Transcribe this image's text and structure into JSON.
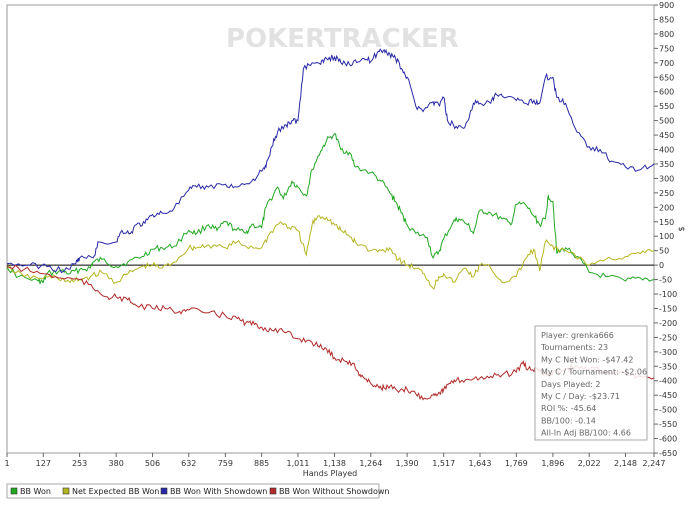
{
  "chart_data": {
    "type": "line",
    "watermark": "POKERTRACKER",
    "xlabel": "Hands Played",
    "ylabel": "$",
    "xlim": [
      1,
      2247
    ],
    "ylim": [
      -650,
      900
    ],
    "x_ticks": [
      1,
      127,
      253,
      380,
      506,
      632,
      759,
      885,
      1011,
      1138,
      1264,
      1390,
      1517,
      1643,
      1769,
      1896,
      2022,
      2148,
      2247
    ],
    "x_tick_labels": [
      "1",
      "127",
      "253",
      "380",
      "506",
      "632",
      "759",
      "885",
      "1,011",
      "1,138",
      "1,264",
      "1,390",
      "1,517",
      "1,643",
      "1,769",
      "1,896",
      "2,022",
      "2,148",
      "2,247"
    ],
    "y_ticks": [
      900,
      850,
      800,
      750,
      700,
      650,
      600,
      550,
      500,
      450,
      400,
      350,
      300,
      250,
      200,
      150,
      100,
      50,
      0,
      -50,
      -100,
      -150,
      -200,
      -250,
      -300,
      -350,
      -400,
      -450,
      -500,
      -550,
      -600,
      -650
    ],
    "series": [
      {
        "name": "BB Won",
        "color": "#21a821",
        "points": [
          [
            1,
            -5
          ],
          [
            40,
            -40
          ],
          [
            110,
            -55
          ],
          [
            127,
            -60
          ],
          [
            140,
            -30
          ],
          [
            190,
            -20
          ],
          [
            220,
            -30
          ],
          [
            253,
            -15
          ],
          [
            290,
            -10
          ],
          [
            300,
            10
          ],
          [
            330,
            20
          ],
          [
            380,
            -5
          ],
          [
            420,
            10
          ],
          [
            470,
            30
          ],
          [
            506,
            55
          ],
          [
            540,
            60
          ],
          [
            580,
            65
          ],
          [
            632,
            120
          ],
          [
            660,
            110
          ],
          [
            700,
            140
          ],
          [
            730,
            120
          ],
          [
            759,
            150
          ],
          [
            790,
            125
          ],
          [
            830,
            110
          ],
          [
            850,
            140
          ],
          [
            885,
            130
          ],
          [
            900,
            200
          ],
          [
            940,
            270
          ],
          [
            960,
            230
          ],
          [
            990,
            290
          ],
          [
            1011,
            270
          ],
          [
            1040,
            240
          ],
          [
            1060,
            330
          ],
          [
            1090,
            395
          ],
          [
            1110,
            430
          ],
          [
            1138,
            455
          ],
          [
            1160,
            400
          ],
          [
            1190,
            390
          ],
          [
            1210,
            340
          ],
          [
            1264,
            320
          ],
          [
            1300,
            290
          ],
          [
            1330,
            250
          ],
          [
            1350,
            220
          ],
          [
            1370,
            180
          ],
          [
            1390,
            140
          ],
          [
            1420,
            110
          ],
          [
            1460,
            95
          ],
          [
            1480,
            25
          ],
          [
            1500,
            45
          ],
          [
            1517,
            90
          ],
          [
            1550,
            150
          ],
          [
            1570,
            160
          ],
          [
            1600,
            140
          ],
          [
            1620,
            110
          ],
          [
            1643,
            190
          ],
          [
            1680,
            180
          ],
          [
            1720,
            160
          ],
          [
            1750,
            140
          ],
          [
            1769,
            210
          ],
          [
            1800,
            210
          ],
          [
            1830,
            170
          ],
          [
            1850,
            140
          ],
          [
            1870,
            160
          ],
          [
            1880,
            240
          ],
          [
            1896,
            220
          ],
          [
            1910,
            40
          ],
          [
            1940,
            60
          ],
          [
            1980,
            30
          ],
          [
            2022,
            -25
          ],
          [
            2080,
            -40
          ],
          [
            2148,
            -55
          ],
          [
            2200,
            -45
          ],
          [
            2247,
            -50
          ]
        ]
      },
      {
        "name": "Net Expected BB Won",
        "color": "#b5b522",
        "points": [
          [
            1,
            -5
          ],
          [
            60,
            -40
          ],
          [
            127,
            -45
          ],
          [
            170,
            -40
          ],
          [
            220,
            -60
          ],
          [
            253,
            -50
          ],
          [
            290,
            -40
          ],
          [
            330,
            -25
          ],
          [
            380,
            -60
          ],
          [
            420,
            -30
          ],
          [
            470,
            -5
          ],
          [
            506,
            0
          ],
          [
            540,
            -10
          ],
          [
            580,
            10
          ],
          [
            632,
            60
          ],
          [
            660,
            60
          ],
          [
            700,
            70
          ],
          [
            759,
            60
          ],
          [
            800,
            80
          ],
          [
            830,
            65
          ],
          [
            885,
            60
          ],
          [
            910,
            105
          ],
          [
            950,
            150
          ],
          [
            980,
            130
          ],
          [
            1011,
            120
          ],
          [
            1040,
            35
          ],
          [
            1060,
            140
          ],
          [
            1080,
            170
          ],
          [
            1110,
            165
          ],
          [
            1138,
            140
          ],
          [
            1160,
            120
          ],
          [
            1190,
            100
          ],
          [
            1210,
            80
          ],
          [
            1264,
            50
          ],
          [
            1300,
            50
          ],
          [
            1330,
            60
          ],
          [
            1360,
            20
          ],
          [
            1390,
            0
          ],
          [
            1420,
            -10
          ],
          [
            1450,
            -30
          ],
          [
            1480,
            -80
          ],
          [
            1500,
            -40
          ],
          [
            1517,
            -30
          ],
          [
            1550,
            -60
          ],
          [
            1590,
            -10
          ],
          [
            1620,
            -40
          ],
          [
            1643,
            0
          ],
          [
            1680,
            -10
          ],
          [
            1720,
            -60
          ],
          [
            1769,
            -40
          ],
          [
            1800,
            20
          ],
          [
            1830,
            55
          ],
          [
            1850,
            -20
          ],
          [
            1870,
            80
          ],
          [
            1896,
            65
          ],
          [
            1920,
            50
          ],
          [
            1960,
            45
          ],
          [
            2022,
            0
          ],
          [
            2080,
            20
          ],
          [
            2148,
            30
          ],
          [
            2200,
            40
          ],
          [
            2247,
            50
          ]
        ]
      },
      {
        "name": "BB Won With Showdown",
        "color": "#2828a8",
        "points": [
          [
            1,
            5
          ],
          [
            80,
            0
          ],
          [
            140,
            -5
          ],
          [
            200,
            -20
          ],
          [
            240,
            5
          ],
          [
            253,
            25
          ],
          [
            300,
            25
          ],
          [
            320,
            80
          ],
          [
            380,
            80
          ],
          [
            400,
            120
          ],
          [
            430,
            110
          ],
          [
            450,
            140
          ],
          [
            480,
            145
          ],
          [
            506,
            175
          ],
          [
            540,
            180
          ],
          [
            580,
            195
          ],
          [
            632,
            260
          ],
          [
            660,
            270
          ],
          [
            700,
            270
          ],
          [
            759,
            280
          ],
          [
            800,
            270
          ],
          [
            850,
            290
          ],
          [
            885,
            325
          ],
          [
            900,
            340
          ],
          [
            920,
            410
          ],
          [
            940,
            460
          ],
          [
            970,
            485
          ],
          [
            990,
            500
          ],
          [
            1011,
            500
          ],
          [
            1030,
            680
          ],
          [
            1060,
            700
          ],
          [
            1090,
            695
          ],
          [
            1110,
            715
          ],
          [
            1138,
            720
          ],
          [
            1160,
            700
          ],
          [
            1190,
            695
          ],
          [
            1210,
            710
          ],
          [
            1240,
            715
          ],
          [
            1264,
            705
          ],
          [
            1290,
            740
          ],
          [
            1310,
            745
          ],
          [
            1330,
            730
          ],
          [
            1350,
            715
          ],
          [
            1370,
            680
          ],
          [
            1390,
            650
          ],
          [
            1420,
            550
          ],
          [
            1450,
            540
          ],
          [
            1480,
            565
          ],
          [
            1500,
            555
          ],
          [
            1517,
            580
          ],
          [
            1530,
            500
          ],
          [
            1560,
            480
          ],
          [
            1590,
            475
          ],
          [
            1620,
            560
          ],
          [
            1643,
            560
          ],
          [
            1680,
            560
          ],
          [
            1700,
            590
          ],
          [
            1720,
            585
          ],
          [
            1769,
            570
          ],
          [
            1800,
            560
          ],
          [
            1830,
            570
          ],
          [
            1850,
            560
          ],
          [
            1870,
            650
          ],
          [
            1896,
            650
          ],
          [
            1910,
            580
          ],
          [
            1940,
            560
          ],
          [
            1980,
            460
          ],
          [
            2022,
            410
          ],
          [
            2060,
            400
          ],
          [
            2100,
            360
          ],
          [
            2148,
            340
          ],
          [
            2200,
            330
          ],
          [
            2247,
            350
          ]
        ]
      },
      {
        "name": "BB Won Without Showdown",
        "color": "#b22a2a",
        "points": [
          [
            1,
            -5
          ],
          [
            60,
            -15
          ],
          [
            127,
            -30
          ],
          [
            190,
            -45
          ],
          [
            253,
            -50
          ],
          [
            300,
            -80
          ],
          [
            350,
            -110
          ],
          [
            380,
            -110
          ],
          [
            420,
            -120
          ],
          [
            450,
            -140
          ],
          [
            506,
            -150
          ],
          [
            550,
            -150
          ],
          [
            600,
            -160
          ],
          [
            632,
            -155
          ],
          [
            700,
            -165
          ],
          [
            759,
            -175
          ],
          [
            800,
            -185
          ],
          [
            830,
            -200
          ],
          [
            860,
            -205
          ],
          [
            885,
            -215
          ],
          [
            920,
            -225
          ],
          [
            960,
            -230
          ],
          [
            1011,
            -255
          ],
          [
            1050,
            -260
          ],
          [
            1080,
            -280
          ],
          [
            1110,
            -290
          ],
          [
            1138,
            -320
          ],
          [
            1170,
            -330
          ],
          [
            1200,
            -340
          ],
          [
            1220,
            -370
          ],
          [
            1240,
            -390
          ],
          [
            1264,
            -410
          ],
          [
            1290,
            -420
          ],
          [
            1310,
            -425
          ],
          [
            1330,
            -420
          ],
          [
            1360,
            -440
          ],
          [
            1390,
            -430
          ],
          [
            1420,
            -445
          ],
          [
            1450,
            -460
          ],
          [
            1480,
            -450
          ],
          [
            1500,
            -440
          ],
          [
            1517,
            -430
          ],
          [
            1540,
            -410
          ],
          [
            1560,
            -400
          ],
          [
            1600,
            -395
          ],
          [
            1643,
            -390
          ],
          [
            1680,
            -385
          ],
          [
            1720,
            -380
          ],
          [
            1769,
            -370
          ],
          [
            1790,
            -340
          ],
          [
            1810,
            -360
          ],
          [
            1840,
            -360
          ],
          [
            1860,
            -370
          ],
          [
            1880,
            -380
          ],
          [
            1896,
            -370
          ],
          [
            1940,
            -360
          ],
          [
            1980,
            -350
          ],
          [
            2022,
            -360
          ],
          [
            2080,
            -365
          ],
          [
            2148,
            -375
          ],
          [
            2200,
            -385
          ],
          [
            2247,
            -390
          ]
        ]
      }
    ],
    "legend": {
      "position": "bottom-left",
      "entries": [
        "BB Won",
        "Net Expected BB Won",
        "BB Won With Showdown",
        "BB Won Without Showdown"
      ]
    },
    "info_box": {
      "position": "bottom-right",
      "lines": [
        "Player: grenka666",
        "Tournaments: 23",
        "My C Net Won: -$47.42",
        "My C / Tournament: -$2.06",
        "Days Played: 2",
        "My C / Day: -$23.71",
        "ROI %: -45.64",
        "BB/100: -0.14",
        "All-In Adj BB/100: 4.66"
      ]
    }
  }
}
